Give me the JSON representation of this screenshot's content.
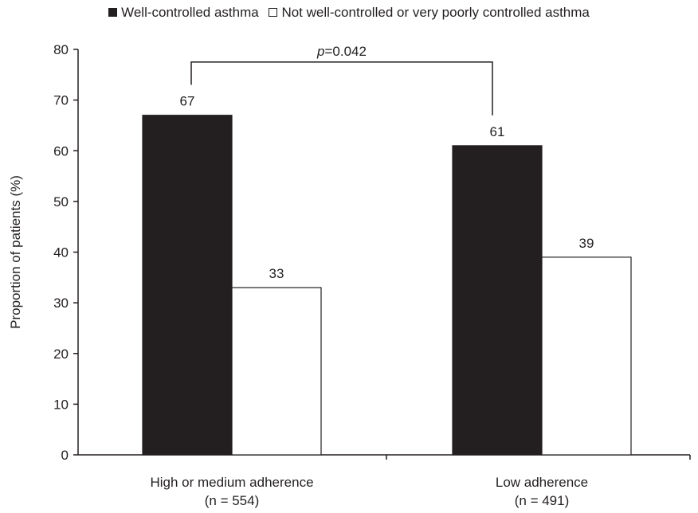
{
  "chart_data": {
    "type": "bar",
    "title": "",
    "xlabel": "",
    "ylabel": "Proportion of patients (%)",
    "ylim": [
      0,
      80
    ],
    "yticks": [
      "0",
      "10",
      "20",
      "30",
      "40",
      "50",
      "60",
      "70",
      "80"
    ],
    "grid": false,
    "legend_position": "top",
    "categories": [
      {
        "label": "High or medium adherence",
        "sublabel": "(n = 554)"
      },
      {
        "label": "Low adherence",
        "sublabel": "(n = 491)"
      }
    ],
    "series": [
      {
        "name": "Well-controlled asthma",
        "color": "#231f20",
        "values": [
          67,
          61
        ],
        "labels": [
          "67",
          "61"
        ]
      },
      {
        "name": "Not well-controlled or very poorly controlled asthma",
        "color": "#ffffff",
        "values": [
          33,
          39
        ],
        "labels": [
          "33",
          "39"
        ]
      }
    ],
    "annotation": {
      "p_symbol": "p",
      "p_value": "=0.042",
      "bracket_level": 77.5,
      "bracket_ends": [
        73,
        67
      ]
    }
  }
}
